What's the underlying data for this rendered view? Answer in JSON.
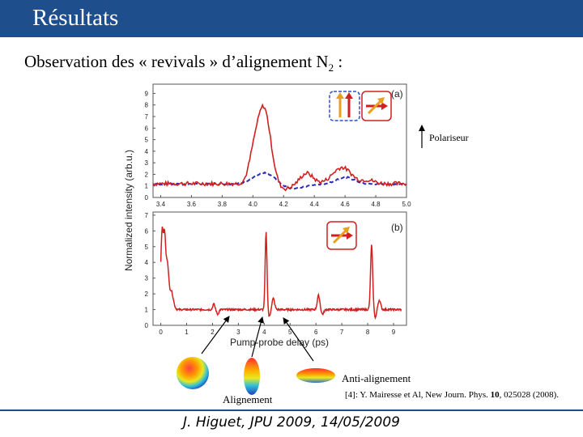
{
  "header": {
    "title": "Résultats"
  },
  "subtitle": {
    "text": "Observation des « revivals » d’alignement N",
    "sub": "2",
    "suffix": " :"
  },
  "figure": {
    "ylabel": "Normalized intensity (arb.u.)",
    "xlabel": "Pump-probe delay (ps)",
    "panel_a": {
      "tag": "(a)",
      "yticks": [
        "0",
        "1",
        "2",
        "3",
        "4",
        "5",
        "6",
        "7",
        "8",
        "9"
      ],
      "xticks": [
        "3.4",
        "3.6",
        "3.8",
        "4.0",
        "4.2",
        "4.4",
        "4.6",
        "4.8",
        "5.0"
      ],
      "xlim": [
        3.35,
        5.0
      ],
      "ylim": [
        0,
        9.8
      ]
    },
    "panel_b": {
      "tag": "(b)",
      "yticks": [
        "0",
        "1",
        "2",
        "3",
        "4",
        "5",
        "6",
        "7"
      ],
      "xticks": [
        "0",
        "1",
        "2",
        "3",
        "4",
        "5",
        "6",
        "7",
        "8",
        "9"
      ],
      "xlim": [
        -0.3,
        9.5
      ],
      "ylim": [
        0,
        7.2
      ]
    },
    "colors": {
      "solid": "#d0201f",
      "dashed": "#2b2fb8",
      "accent": "#f0a020"
    }
  },
  "polariseur": {
    "label": "Polariseur"
  },
  "labels": {
    "alignment": "Alignement",
    "anti_alignment": "Anti-alignement"
  },
  "reference": {
    "prefix": "[4]: Y. Mairesse et Al, New Journ. Phys. ",
    "volume": "10",
    "suffix": ", 025028 (2008)."
  },
  "footer": {
    "text": "J. Higuet, JPU 2009, 14/05/2009"
  }
}
